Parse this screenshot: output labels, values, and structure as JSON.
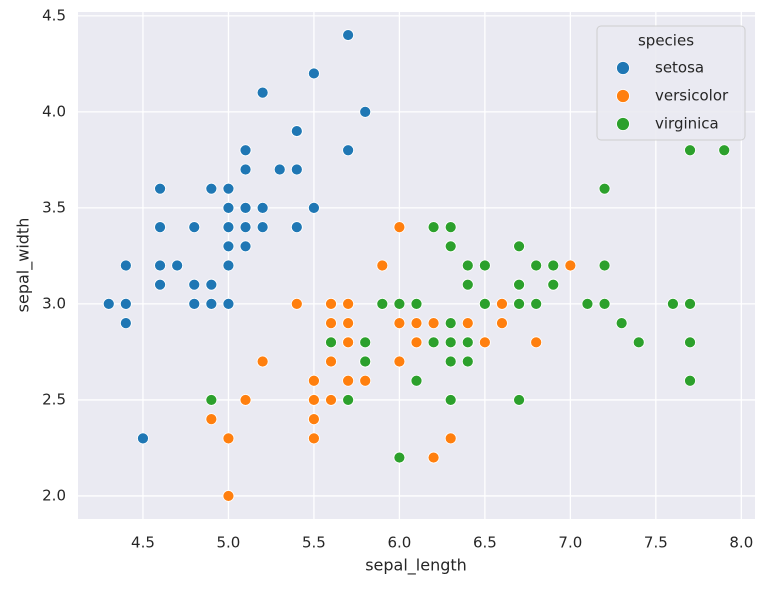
{
  "chart_data": {
    "type": "scatter",
    "x_label": "sepal_length",
    "y_label": "sepal_width",
    "legend_title": "species",
    "legend": "upper right",
    "grid": true,
    "xlim": [
      4.12,
      8.08
    ],
    "ylim": [
      1.88,
      4.52
    ],
    "xticks": [
      4.5,
      {
        "value": 5,
        "label": "5.0"
      },
      5.5,
      {
        "value": 6,
        "label": "6.0"
      },
      6.5,
      {
        "value": 7,
        "label": "7.0"
      },
      7.5,
      {
        "value": 8,
        "label": "8.0"
      }
    ],
    "yticks": [
      {
        "value": 2,
        "label": "2.0"
      },
      2.5,
      {
        "value": 3,
        "label": "3.0"
      },
      3.5,
      {
        "value": 4,
        "label": "4.0"
      },
      4.5
    ],
    "series": [
      {
        "name": "setosa",
        "color": "#1f77b4",
        "x": [
          5.1,
          4.9,
          4.7,
          4.6,
          5.0,
          5.4,
          4.6,
          5.0,
          4.4,
          4.9,
          5.4,
          4.8,
          4.8,
          4.3,
          5.8,
          5.7,
          5.4,
          5.1,
          5.7,
          5.1,
          5.4,
          5.1,
          4.6,
          5.1,
          4.8,
          5.0,
          5.0,
          5.2,
          5.2,
          4.7,
          4.8,
          5.4,
          5.2,
          5.5,
          4.9,
          5.0,
          5.5,
          4.9,
          4.4,
          5.1,
          5.0,
          4.5,
          4.4,
          5.0,
          5.1,
          4.8,
          5.1,
          4.6,
          5.3,
          5.0
        ],
        "values": [
          3.5,
          3.0,
          3.2,
          3.1,
          3.6,
          3.9,
          3.4,
          3.4,
          2.9,
          3.1,
          3.7,
          3.4,
          3.0,
          3.0,
          4.0,
          4.4,
          3.9,
          3.5,
          3.8,
          3.8,
          3.4,
          3.7,
          3.6,
          3.3,
          3.4,
          3.0,
          3.4,
          3.5,
          3.4,
          3.2,
          3.1,
          3.4,
          4.1,
          4.2,
          3.1,
          3.2,
          3.5,
          3.6,
          3.0,
          3.4,
          3.5,
          2.3,
          3.2,
          3.5,
          3.8,
          3.0,
          3.8,
          3.2,
          3.7,
          3.3
        ]
      },
      {
        "name": "versicolor",
        "color": "#ff7f0e",
        "x": [
          7.0,
          6.4,
          6.9,
          5.5,
          6.5,
          5.7,
          6.3,
          4.9,
          6.6,
          5.2,
          5.0,
          5.9,
          6.0,
          6.1,
          5.6,
          6.7,
          5.6,
          5.8,
          6.2,
          5.6,
          5.9,
          6.1,
          6.3,
          6.1,
          6.4,
          6.6,
          6.8,
          6.7,
          6.0,
          5.7,
          5.5,
          5.5,
          5.8,
          6.0,
          5.4,
          6.0,
          6.7,
          6.3,
          5.6,
          5.5,
          5.5,
          6.1,
          5.8,
          5.0,
          5.6,
          5.7,
          5.7,
          6.2,
          5.1,
          5.7
        ],
        "values": [
          3.2,
          3.2,
          3.1,
          2.3,
          2.8,
          2.8,
          3.3,
          2.4,
          2.9,
          2.7,
          2.0,
          3.0,
          2.2,
          2.9,
          2.9,
          3.1,
          3.0,
          2.7,
          2.2,
          2.5,
          3.2,
          2.8,
          2.5,
          2.8,
          2.9,
          3.0,
          2.8,
          3.0,
          2.9,
          2.6,
          2.4,
          2.4,
          2.7,
          2.7,
          3.0,
          3.4,
          3.1,
          2.3,
          3.0,
          2.5,
          2.6,
          3.0,
          2.6,
          2.3,
          2.7,
          3.0,
          2.9,
          2.9,
          2.5,
          2.8
        ]
      },
      {
        "name": "virginica",
        "color": "#2ca02c",
        "x": [
          6.3,
          5.8,
          7.1,
          6.3,
          6.5,
          7.6,
          4.9,
          7.3,
          6.7,
          7.2,
          6.5,
          6.4,
          6.8,
          5.7,
          5.8,
          6.4,
          6.5,
          7.7,
          7.7,
          6.0,
          6.9,
          5.6,
          7.7,
          6.3,
          6.7,
          7.2,
          6.2,
          6.1,
          6.4,
          7.2,
          7.4,
          7.9,
          6.4,
          6.3,
          6.1,
          7.7,
          6.3,
          6.4,
          6.0,
          6.9,
          6.7,
          6.9,
          5.8,
          6.8,
          6.7,
          6.7,
          6.3,
          6.5,
          6.2,
          5.9
        ],
        "values": [
          3.3,
          2.7,
          3.0,
          2.9,
          3.0,
          3.0,
          2.5,
          2.9,
          2.5,
          3.6,
          3.2,
          2.7,
          3.0,
          2.5,
          2.8,
          3.2,
          3.0,
          3.8,
          2.6,
          2.2,
          3.2,
          2.8,
          2.8,
          2.7,
          3.3,
          3.2,
          2.8,
          3.0,
          2.8,
          3.0,
          2.8,
          3.8,
          2.8,
          2.8,
          2.6,
          3.0,
          3.4,
          3.1,
          3.0,
          3.1,
          3.1,
          3.1,
          2.7,
          3.2,
          3.3,
          3.0,
          2.5,
          3.0,
          3.4,
          3.0
        ]
      }
    ]
  }
}
